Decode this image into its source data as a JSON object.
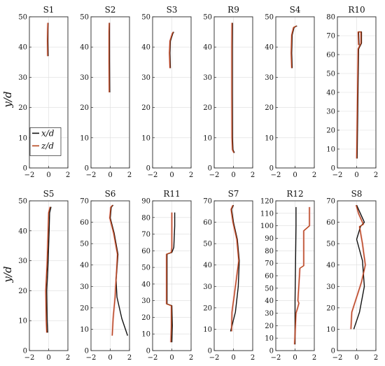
{
  "colors": {
    "x_line": "#111111",
    "z_line": "#b5451b",
    "shade": "#f6c9d0",
    "grid": "#dcdcdc"
  },
  "figure": {
    "ylabel": "y/d",
    "xticks": [
      "−2",
      "0",
      "2"
    ],
    "xlim": [
      -2,
      2
    ]
  },
  "legend": {
    "placement": "lower-left of S1",
    "entries": [
      {
        "label": "x/d",
        "series": "x"
      },
      {
        "label": "z/d",
        "series": "z"
      }
    ]
  },
  "chart_data": [
    {
      "type": "line",
      "title": "S1",
      "xlim": [
        -2,
        2
      ],
      "ylim": [
        0,
        50
      ],
      "yticks": [
        0,
        10,
        20,
        30,
        40,
        50
      ],
      "series": [
        {
          "name": "x/d",
          "points": [
            [
              -0.05,
              37
            ],
            [
              -0.08,
              42
            ],
            [
              -0.07,
              46
            ],
            [
              -0.06,
              48
            ]
          ]
        },
        {
          "name": "z/d",
          "points": [
            [
              -0.1,
              37
            ],
            [
              -0.12,
              42
            ],
            [
              -0.1,
              46
            ],
            [
              -0.08,
              48
            ]
          ]
        }
      ]
    },
    {
      "type": "line",
      "title": "S2",
      "xlim": [
        -2,
        2
      ],
      "ylim": [
        0,
        50
      ],
      "yticks": [
        0,
        10,
        20,
        30,
        40,
        50
      ],
      "series": [
        {
          "name": "x/d",
          "points": [
            [
              -0.05,
              25
            ],
            [
              -0.07,
              35
            ],
            [
              -0.08,
              45
            ],
            [
              -0.08,
              48
            ]
          ]
        },
        {
          "name": "z/d",
          "points": [
            [
              -0.1,
              25
            ],
            [
              -0.12,
              35
            ],
            [
              -0.12,
              45
            ],
            [
              -0.1,
              48
            ]
          ]
        }
      ]
    },
    {
      "type": "line",
      "title": "S3",
      "xlim": [
        -2,
        2
      ],
      "ylim": [
        0,
        50
      ],
      "yticks": [
        0,
        10,
        20,
        30,
        40,
        50
      ],
      "series": [
        {
          "name": "x/d",
          "points": [
            [
              -0.15,
              33
            ],
            [
              -0.2,
              38
            ],
            [
              -0.15,
              42
            ],
            [
              0.1,
              44.5
            ],
            [
              0.2,
              45
            ]
          ]
        },
        {
          "name": "z/d",
          "points": [
            [
              -0.2,
              33
            ],
            [
              -0.25,
              38
            ],
            [
              -0.2,
              42
            ],
            [
              0.05,
              44.5
            ],
            [
              0.15,
              45
            ]
          ]
        }
      ]
    },
    {
      "type": "line",
      "title": "R9",
      "xlim": [
        -2,
        2
      ],
      "ylim": [
        0,
        50
      ],
      "yticks": [
        0,
        10,
        20,
        30,
        40,
        50
      ],
      "series": [
        {
          "name": "x/d",
          "points": [
            [
              0.1,
              5
            ],
            [
              -0.05,
              6
            ],
            [
              -0.1,
              10
            ],
            [
              -0.12,
              25
            ],
            [
              -0.12,
              40
            ],
            [
              -0.1,
              48
            ]
          ]
        },
        {
          "name": "z/d",
          "points": [
            [
              0.05,
              5
            ],
            [
              -0.1,
              6
            ],
            [
              -0.15,
              10
            ],
            [
              -0.17,
              25
            ],
            [
              -0.17,
              40
            ],
            [
              -0.15,
              48
            ]
          ]
        }
      ]
    },
    {
      "type": "line",
      "title": "S4",
      "xlim": [
        -2,
        2
      ],
      "ylim": [
        0,
        50
      ],
      "yticks": [
        0,
        10,
        20,
        30,
        40,
        50
      ],
      "series": [
        {
          "name": "x/d",
          "points": [
            [
              -0.3,
              33
            ],
            [
              -0.35,
              38
            ],
            [
              -0.3,
              44
            ],
            [
              -0.1,
              46.5
            ],
            [
              0.2,
              47
            ]
          ]
        },
        {
          "name": "z/d",
          "points": [
            [
              -0.35,
              33
            ],
            [
              -0.4,
              38
            ],
            [
              -0.35,
              44
            ],
            [
              -0.15,
              46.5
            ],
            [
              0.15,
              47
            ]
          ]
        }
      ]
    },
    {
      "type": "line",
      "title": "R10",
      "xlim": [
        -2,
        2
      ],
      "ylim": [
        0,
        80
      ],
      "yticks": [
        0,
        10,
        20,
        30,
        40,
        50,
        60,
        70,
        80
      ],
      "series": [
        {
          "name": "x/d",
          "points": [
            [
              0.05,
              5
            ],
            [
              0.1,
              25
            ],
            [
              0.15,
              45
            ],
            [
              0.2,
              63
            ],
            [
              0.3,
              64
            ],
            [
              0.5,
              66
            ],
            [
              0.5,
              72
            ],
            [
              0.2,
              72
            ],
            [
              0.25,
              65
            ]
          ]
        },
        {
          "name": "z/d",
          "points": [
            [
              0.0,
              5
            ],
            [
              0.05,
              25
            ],
            [
              0.1,
              45
            ],
            [
              0.15,
              63
            ],
            [
              0.25,
              64
            ],
            [
              0.45,
              66
            ],
            [
              0.45,
              72
            ],
            [
              0.15,
              72
            ],
            [
              0.2,
              65
            ]
          ]
        }
      ]
    },
    {
      "type": "line",
      "title": "S5",
      "xlim": [
        -2,
        2
      ],
      "ylim": [
        0,
        50
      ],
      "yticks": [
        0,
        10,
        20,
        30,
        40,
        50
      ],
      "series": [
        {
          "name": "x/d",
          "points": [
            [
              -0.1,
              6
            ],
            [
              -0.15,
              10
            ],
            [
              -0.2,
              20
            ],
            [
              -0.05,
              30
            ],
            [
              0.05,
              40
            ],
            [
              0.1,
              46
            ],
            [
              0.25,
              48
            ]
          ]
        },
        {
          "name": "z/d",
          "points": [
            [
              -0.2,
              6
            ],
            [
              -0.25,
              10
            ],
            [
              -0.3,
              20
            ],
            [
              -0.15,
              30
            ],
            [
              -0.05,
              40
            ],
            [
              0.0,
              46
            ],
            [
              0.15,
              48
            ]
          ]
        }
      ]
    },
    {
      "type": "line",
      "title": "S6",
      "xlim": [
        -2,
        2
      ],
      "ylim": [
        0,
        70
      ],
      "yticks": [
        0,
        10,
        20,
        30,
        40,
        50,
        60,
        70
      ],
      "series": [
        {
          "name": "x/d",
          "points": [
            [
              1.8,
              7
            ],
            [
              1.2,
              15
            ],
            [
              0.7,
              25
            ],
            [
              0.6,
              33
            ],
            [
              0.8,
              45
            ],
            [
              0.4,
              55
            ],
            [
              0.0,
              62
            ],
            [
              0.1,
              67
            ],
            [
              0.3,
              68
            ]
          ]
        },
        {
          "name": "z/d",
          "points": [
            [
              0.2,
              7
            ],
            [
              0.3,
              15
            ],
            [
              0.5,
              25
            ],
            [
              0.6,
              33
            ],
            [
              0.75,
              45
            ],
            [
              0.35,
              55
            ],
            [
              -0.05,
              62
            ],
            [
              0.05,
              67
            ],
            [
              0.25,
              68
            ]
          ]
        }
      ]
    },
    {
      "type": "line",
      "title": "R11",
      "xlim": [
        -2,
        2
      ],
      "ylim": [
        0,
        90
      ],
      "yticks": [
        0,
        10,
        20,
        30,
        40,
        50,
        60,
        70,
        80,
        90
      ],
      "series": [
        {
          "name": "x/d",
          "points": [
            [
              0.0,
              5
            ],
            [
              0.05,
              15
            ],
            [
              0.0,
              27
            ],
            [
              -0.5,
              28
            ],
            [
              -0.5,
              58
            ],
            [
              0.0,
              59
            ],
            [
              0.2,
              62
            ],
            [
              0.3,
              75
            ],
            [
              0.3,
              83
            ]
          ]
        },
        {
          "name": "z/d",
          "points": [
            [
              -0.1,
              5
            ],
            [
              -0.05,
              15
            ],
            [
              -0.05,
              27
            ],
            [
              -0.55,
              28
            ],
            [
              -0.55,
              58
            ],
            [
              -0.05,
              59
            ],
            [
              0.0,
              62
            ],
            [
              0.0,
              75
            ],
            [
              0.0,
              83
            ]
          ]
        }
      ]
    },
    {
      "type": "line",
      "title": "S7",
      "xlim": [
        -2,
        2
      ],
      "ylim": [
        0,
        70
      ],
      "yticks": [
        0,
        10,
        20,
        30,
        40,
        50,
        60,
        70
      ],
      "series": [
        {
          "name": "x/d",
          "points": [
            [
              -0.3,
              9
            ],
            [
              0.2,
              18
            ],
            [
              0.5,
              30
            ],
            [
              0.6,
              42
            ],
            [
              0.4,
              52
            ],
            [
              0.0,
              60
            ],
            [
              -0.2,
              66
            ],
            [
              0.0,
              68
            ]
          ]
        },
        {
          "name": "z/d",
          "points": [
            [
              -0.2,
              9
            ],
            [
              -0.15,
              18
            ],
            [
              0.2,
              30
            ],
            [
              0.55,
              42
            ],
            [
              0.35,
              52
            ],
            [
              -0.05,
              60
            ],
            [
              -0.25,
              66
            ],
            [
              -0.05,
              68
            ]
          ]
        }
      ]
    },
    {
      "type": "line",
      "title": "R12",
      "xlim": [
        -2,
        2
      ],
      "ylim": [
        0,
        120
      ],
      "yticks": [
        0,
        10,
        20,
        30,
        40,
        50,
        60,
        70,
        80,
        90,
        100,
        110,
        120
      ],
      "series": [
        {
          "name": "x/d",
          "points": [
            [
              0.0,
              5
            ],
            [
              0.0,
              40
            ],
            [
              0.05,
              70
            ],
            [
              0.1,
              100
            ],
            [
              0.1,
              115
            ]
          ]
        },
        {
          "name": "z/d",
          "points": [
            [
              -0.05,
              5
            ],
            [
              0.1,
              30
            ],
            [
              0.3,
              35
            ],
            [
              0.4,
              38
            ],
            [
              0.3,
              40
            ],
            [
              0.5,
              66
            ],
            [
              0.9,
              68
            ],
            [
              0.9,
              96
            ],
            [
              1.5,
              100
            ],
            [
              1.5,
              115
            ]
          ]
        }
      ]
    },
    {
      "type": "line",
      "title": "S8",
      "xlim": [
        -2,
        2
      ],
      "ylim": [
        0,
        70
      ],
      "yticks": [
        0,
        10,
        20,
        30,
        40,
        50,
        60,
        70
      ],
      "series": [
        {
          "name": "x/d",
          "points": [
            [
              -0.3,
              10
            ],
            [
              0.3,
              18
            ],
            [
              0.8,
              30
            ],
            [
              0.6,
              42
            ],
            [
              0.0,
              52
            ],
            [
              0.4,
              58
            ],
            [
              0.8,
              60
            ],
            [
              0.3,
              65
            ],
            [
              0.0,
              68
            ]
          ]
        },
        {
          "name": "z/d",
          "points": [
            [
              -0.6,
              10
            ],
            [
              -0.5,
              18
            ],
            [
              0.0,
              25
            ],
            [
              0.5,
              32
            ],
            [
              0.9,
              40
            ],
            [
              0.6,
              50
            ],
            [
              0.3,
              58
            ],
            [
              0.7,
              59
            ],
            [
              0.2,
              64
            ],
            [
              -0.05,
              68
            ]
          ]
        }
      ]
    }
  ]
}
